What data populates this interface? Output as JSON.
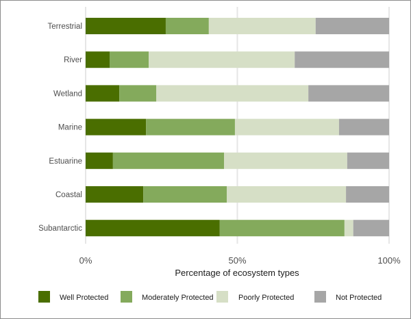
{
  "chart_data": {
    "type": "bar",
    "orientation": "horizontal",
    "stacked": true,
    "title": "",
    "xlabel": "Percentage of ecosystem types",
    "ylabel": "",
    "xlim": [
      0,
      100
    ],
    "xticks": [
      0,
      50,
      100
    ],
    "xtick_labels": [
      "0%",
      "50%",
      "100%"
    ],
    "grid": true,
    "legend_position": "bottom",
    "categories": [
      "Terrestrial",
      "River",
      "Wetland",
      "Marine",
      "Estuarine",
      "Coastal",
      "Subantarctic"
    ],
    "series": [
      {
        "name": "Well Protected",
        "color": "#4a6e00",
        "values": [
          26.4,
          7.9,
          11.1,
          19.9,
          9.0,
          19.0,
          44.2
        ]
      },
      {
        "name": "Moderately Protected",
        "color": "#84aa5c",
        "values": [
          14.2,
          12.9,
          12.2,
          29.3,
          36.6,
          27.5,
          41.1
        ]
      },
      {
        "name": "Poorly Protected",
        "color": "#d6dfc6",
        "values": [
          35.2,
          48.1,
          50.1,
          34.3,
          40.6,
          39.3,
          2.9
        ]
      },
      {
        "name": "Not Protected",
        "color": "#a6a6a6",
        "values": [
          24.2,
          31.1,
          26.6,
          16.5,
          13.8,
          14.2,
          11.8
        ]
      }
    ]
  }
}
